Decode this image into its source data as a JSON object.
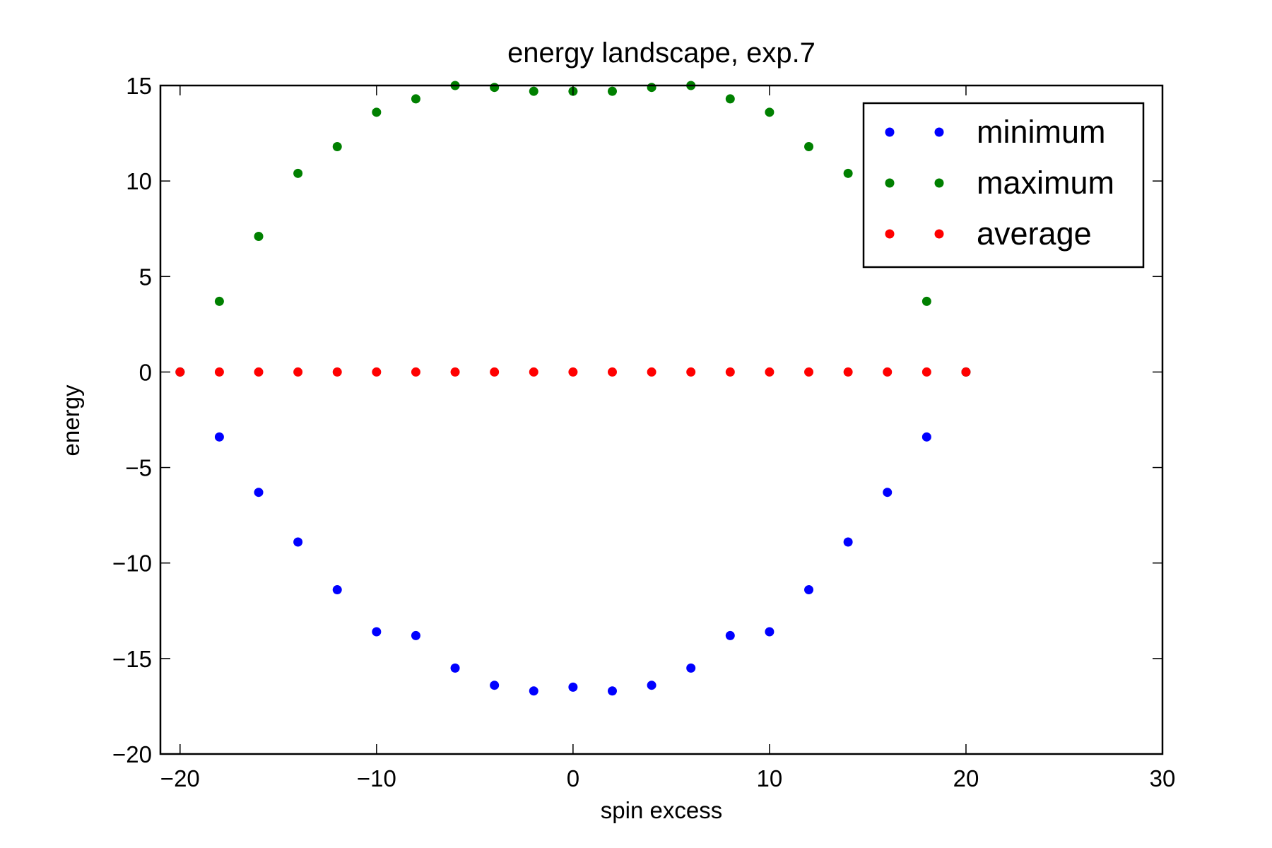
{
  "chart_data": {
    "type": "scatter",
    "title": "energy landscape, exp.7",
    "xlabel": "spin excess",
    "ylabel": "energy",
    "xlim": [
      -21,
      30
    ],
    "ylim": [
      -20,
      15
    ],
    "xticks": [
      -20,
      -10,
      0,
      10,
      20,
      30
    ],
    "xtick_labels": [
      "−20",
      "−10",
      "0",
      "10",
      "20",
      "30"
    ],
    "yticks": [
      -20,
      -15,
      -10,
      -5,
      0,
      5,
      10,
      15
    ],
    "ytick_labels": [
      "−20",
      "−15",
      "−10",
      "−5",
      "0",
      "5",
      "10",
      "15"
    ],
    "grid": false,
    "legend_position": "top-right",
    "series": [
      {
        "name": "minimum",
        "color": "#0000ff",
        "x": [
          -20,
          -18,
          -16,
          -14,
          -12,
          -10,
          -8,
          -6,
          -4,
          -2,
          0,
          2,
          4,
          6,
          8,
          10,
          12,
          14,
          16,
          18,
          20
        ],
        "y": [
          0,
          -3.4,
          -6.3,
          -8.9,
          -11.4,
          -13.6,
          -13.8,
          -15.5,
          -16.4,
          -16.7,
          -16.5,
          -16.7,
          -16.4,
          -15.5,
          -13.8,
          -13.6,
          -11.4,
          -8.9,
          -6.3,
          -3.4,
          0
        ]
      },
      {
        "name": "maximum",
        "color": "#008000",
        "x": [
          -20,
          -18,
          -16,
          -14,
          -12,
          -10,
          -8,
          -6,
          -4,
          -2,
          0,
          2,
          4,
          6,
          8,
          10,
          12,
          14,
          16,
          18,
          20
        ],
        "y": [
          0,
          3.7,
          7.1,
          10.4,
          11.8,
          13.6,
          14.3,
          15.0,
          14.9,
          14.7,
          14.7,
          14.7,
          14.9,
          15.0,
          14.3,
          13.6,
          11.8,
          10.4,
          7.1,
          3.7,
          0
        ]
      },
      {
        "name": "average",
        "color": "#ff0000",
        "x": [
          -20,
          -18,
          -16,
          -14,
          -12,
          -10,
          -8,
          -6,
          -4,
          -2,
          0,
          2,
          4,
          6,
          8,
          10,
          12,
          14,
          16,
          18,
          20
        ],
        "y": [
          0,
          0,
          0,
          0,
          0,
          0,
          0,
          0,
          0,
          0,
          0,
          0,
          0,
          0,
          0,
          0,
          0,
          0,
          0,
          0,
          0
        ]
      }
    ]
  }
}
